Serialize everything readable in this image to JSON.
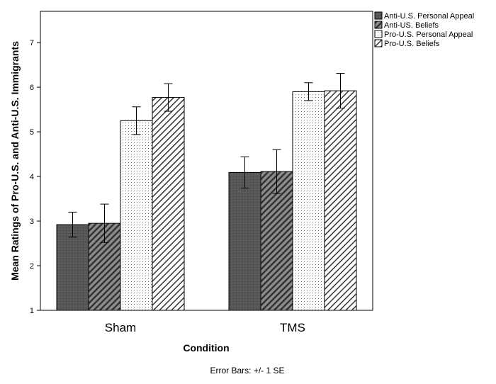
{
  "chart_data": {
    "type": "bar",
    "categories": [
      "Sham",
      "TMS"
    ],
    "series": [
      {
        "name": "Anti-U.S. Personal Appeal",
        "values": [
          2.92,
          4.09
        ],
        "error": [
          0.28,
          0.35
        ],
        "fill": "#5a5a5a",
        "pattern": "dots-dark"
      },
      {
        "name": "Anti-US. Beliefs",
        "values": [
          2.95,
          4.11
        ],
        "error": [
          0.43,
          0.49
        ],
        "fill": "#707070",
        "pattern": "hatch-dark"
      },
      {
        "name": "Pro-U.S. Personal Appeal",
        "values": [
          5.25,
          5.9
        ],
        "error": [
          0.31,
          0.2
        ],
        "fill": "#ffffff",
        "pattern": "dots-light"
      },
      {
        "name": "Pro-U.S. Beliefs",
        "values": [
          5.77,
          5.92
        ],
        "error": [
          0.31,
          0.39
        ],
        "fill": "#ffffff",
        "pattern": "hatch-light"
      }
    ],
    "yticks": [
      1,
      2,
      3,
      4,
      5,
      6,
      7
    ],
    "ylim": [
      1,
      7.7
    ],
    "xlabel": "Condition",
    "ylabel": "Mean Ratings of Pro-U.S. and Anti-U.S. Immigrants",
    "legend_position": "top-right",
    "note": "Error Bars: +/- 1 SE",
    "grid": false
  }
}
